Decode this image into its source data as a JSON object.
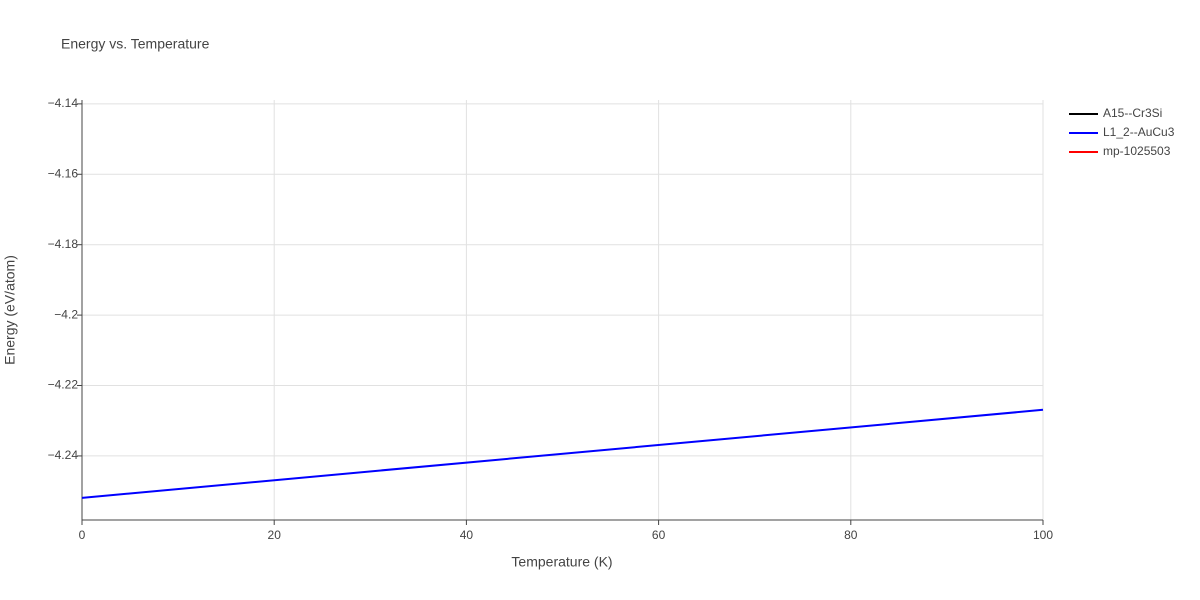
{
  "chart_data": {
    "type": "line",
    "title": "Energy vs. Temperature",
    "x_label": "Temperature (K)",
    "y_label": "Energy (eV/atom)",
    "x": [
      0,
      100
    ],
    "series": [
      {
        "name": "A15--Cr3Si",
        "color": "#000000",
        "values": [
          null,
          null
        ]
      },
      {
        "name": "L1_2--AuCu3",
        "color": "#0000ff",
        "values": [
          -4.2519,
          -4.2269
        ]
      },
      {
        "name": "mp-1025503",
        "color": "#ff0000",
        "values": [
          null,
          null
        ]
      }
    ],
    "xlim": [
      0,
      100
    ],
    "xticks": [
      0,
      20,
      40,
      60,
      80,
      100
    ],
    "ylim": [
      -4.2582,
      -4.1389
    ],
    "yticks": [
      {
        "value": -4.24,
        "label": "−4.24"
      },
      {
        "value": -4.22,
        "label": "−4.22"
      },
      {
        "value": -4.2,
        "label": "−4.2"
      },
      {
        "value": -4.18,
        "label": "−4.18"
      },
      {
        "value": -4.16,
        "label": "−4.16"
      },
      {
        "value": -4.14,
        "label": "−4.14"
      }
    ],
    "grid": true,
    "legend": "right"
  }
}
